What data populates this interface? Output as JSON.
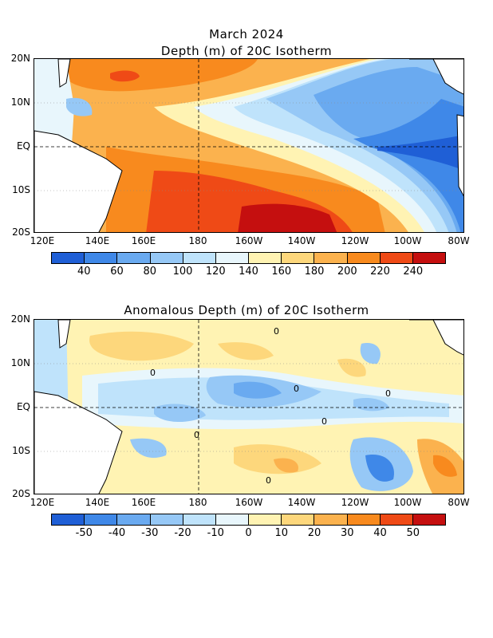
{
  "header": {
    "title_line1": "March 2024",
    "title_line2": "Depth (m) of 20C Isotherm"
  },
  "lat_labels": [
    "20N",
    "10N",
    "EQ",
    "10S",
    "20S"
  ],
  "lon_labels": [
    "120E",
    "140E",
    "160E",
    "180",
    "160W",
    "140W",
    "120W",
    "100W",
    "80W"
  ],
  "panel_top": {
    "colorbar": {
      "labels": [
        "40",
        "60",
        "80",
        "100",
        "120",
        "140",
        "160",
        "180",
        "200",
        "220",
        "240"
      ],
      "colors": [
        "#1f5fd6",
        "#3f88e8",
        "#6aaaf0",
        "#96c8f6",
        "#bfe3fb",
        "#e8f6fc",
        "#fff3b3",
        "#fdd77c",
        "#fbb24e",
        "#f88a1e",
        "#ef4a16",
        "#c50f0f"
      ]
    }
  },
  "panel_bottom": {
    "title": "Anomalous Depth (m) of 20C Isotherm",
    "colorbar": {
      "labels": [
        "-50",
        "-40",
        "-30",
        "-20",
        "-10",
        "0",
        "10",
        "20",
        "30",
        "40",
        "50"
      ],
      "colors": [
        "#1f5fd6",
        "#3f88e8",
        "#6aaaf0",
        "#96c8f6",
        "#bfe3fb",
        "#e8f6fc",
        "#fff3b3",
        "#fdd77c",
        "#fbb24e",
        "#f88a1e",
        "#ef4a16",
        "#c50f0f"
      ]
    }
  },
  "contour_labels_bottom": [
    "0",
    "0",
    "0",
    "0",
    "0",
    "0",
    "0"
  ]
}
